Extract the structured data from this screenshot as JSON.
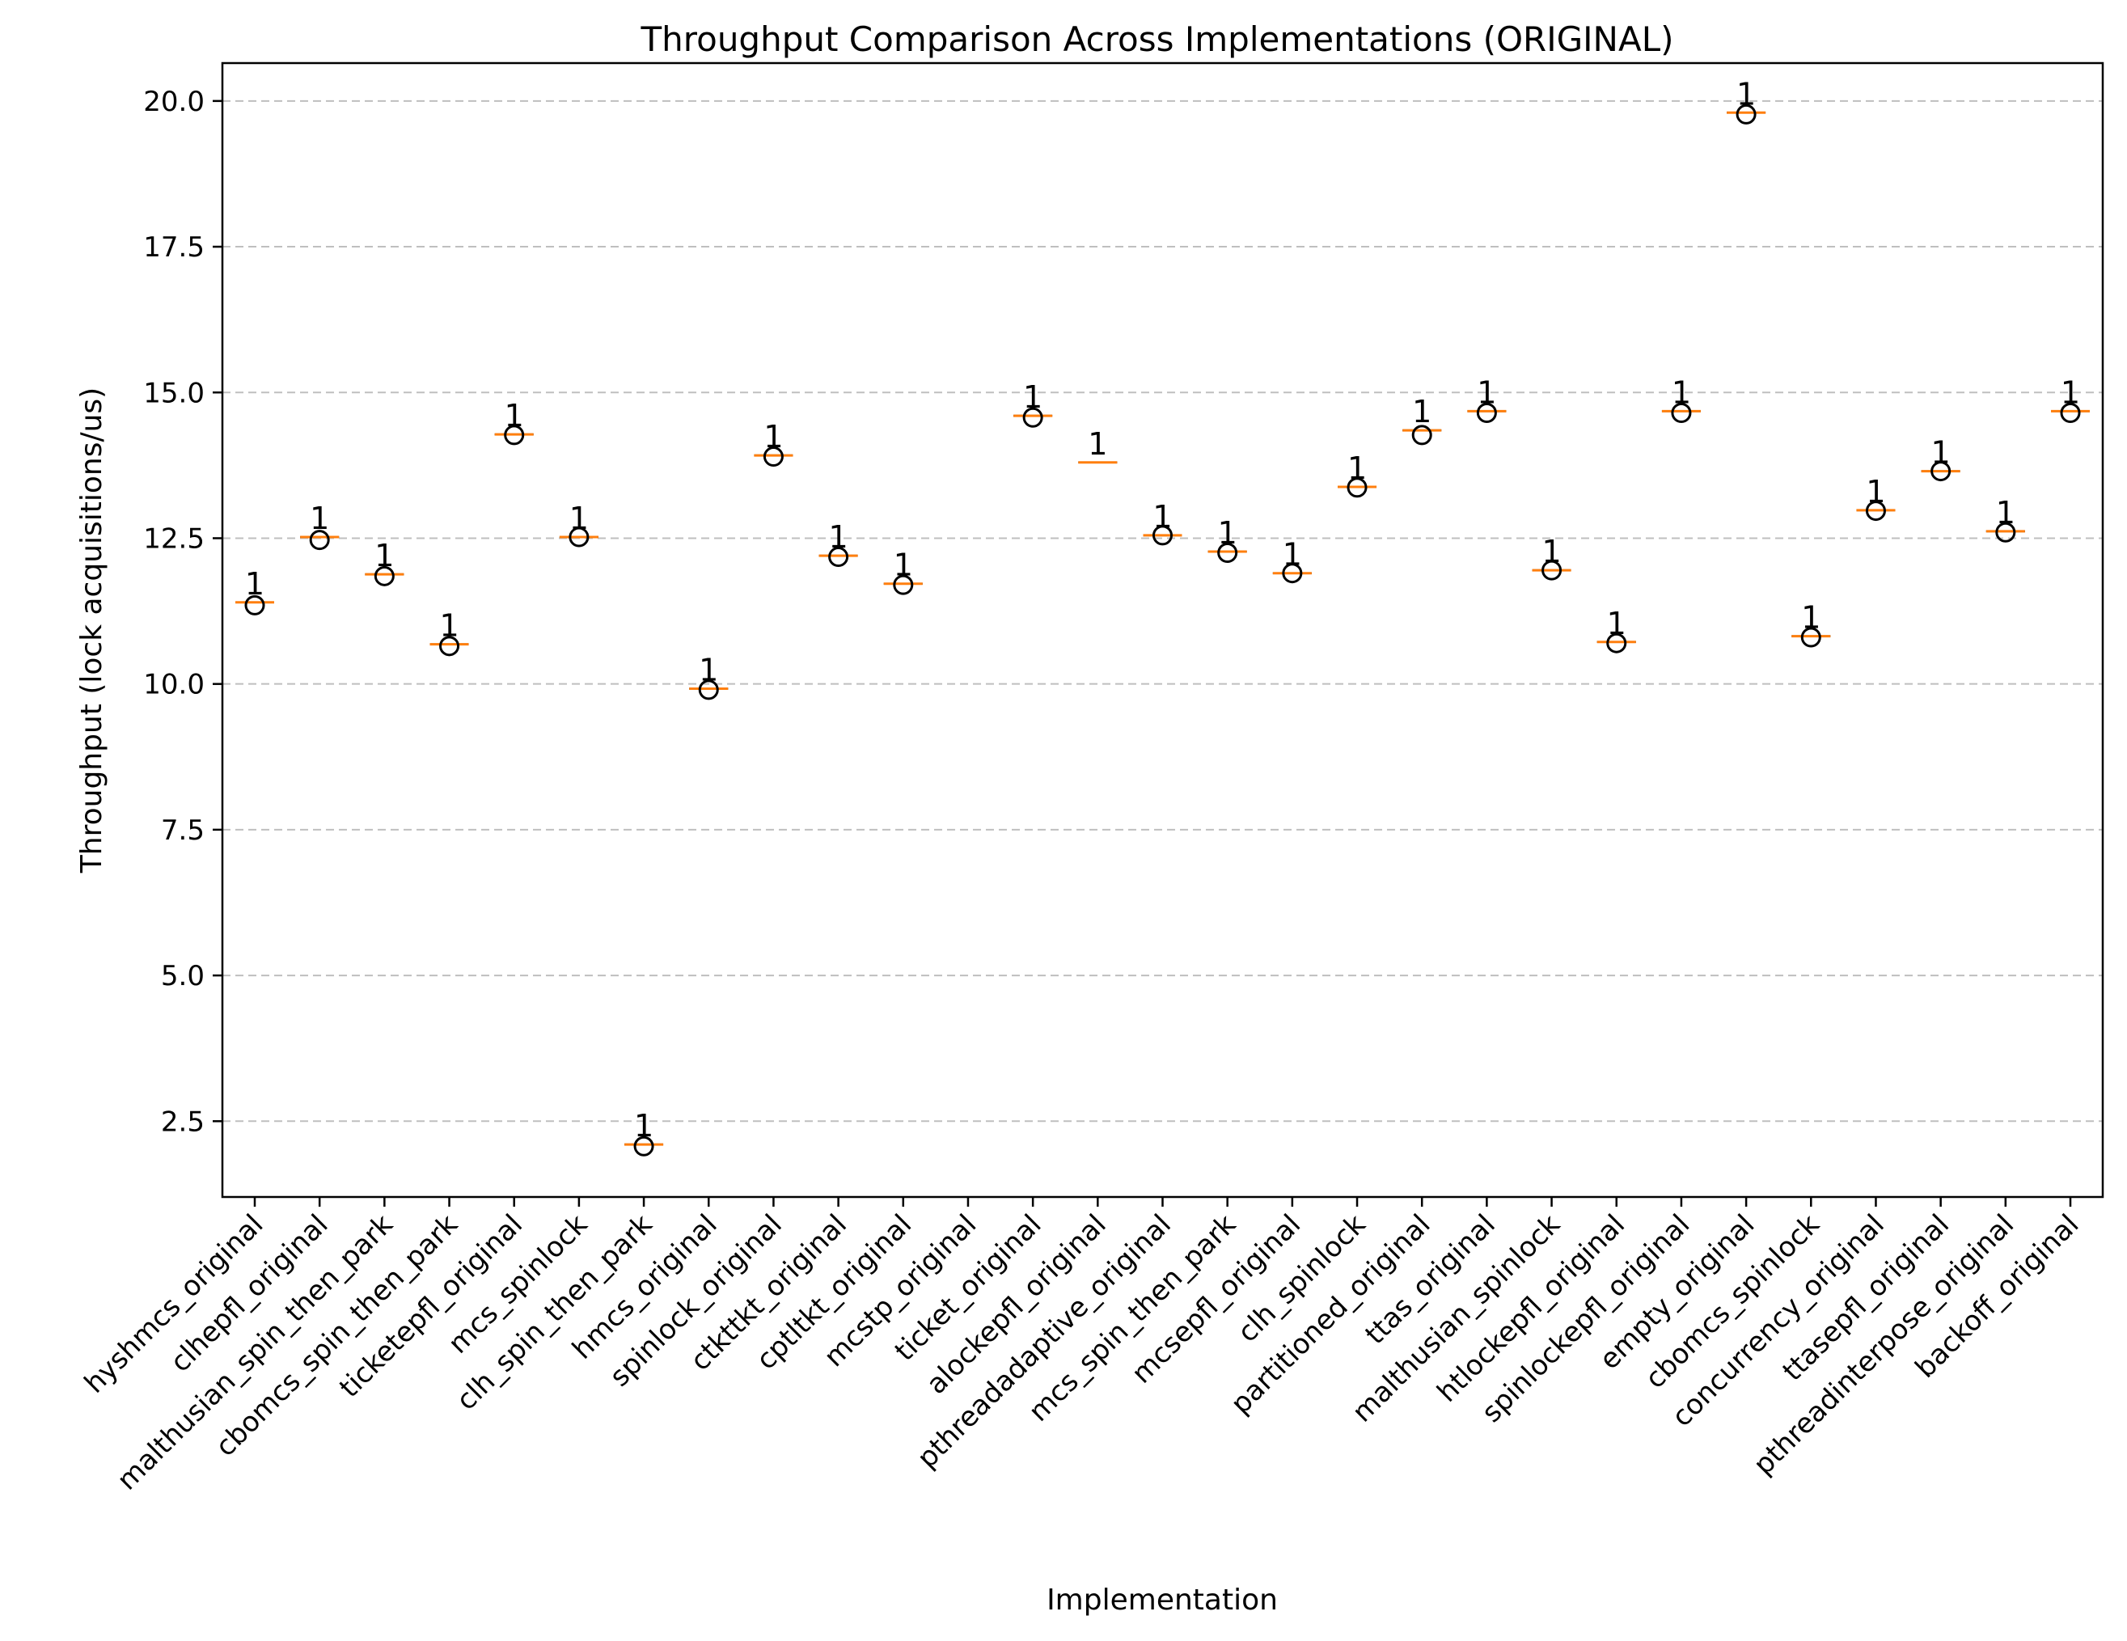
{
  "chart_data": {
    "type": "box",
    "title": "Throughput Comparison Across Implementations (ORIGINAL)",
    "xlabel": "Implementation",
    "ylabel": "Throughput (lock acquisitions/us)",
    "ylim": [
      1.2,
      20.65
    ],
    "yticks": [
      2.5,
      5.0,
      7.5,
      10.0,
      12.5,
      15.0,
      17.5,
      20.0
    ],
    "ytick_labels": [
      "2.5",
      "5.0",
      "7.5",
      "10.0",
      "12.5",
      "15.0",
      "17.5",
      "20.0"
    ],
    "grid": "y",
    "categories": [
      "hyshmcs_original",
      "clhepfl_original",
      "malthusian_spin_then_park",
      "cbomcs_spin_then_park",
      "ticketepfl_original",
      "mcs_spinlock",
      "clh_spin_then_park",
      "hmcs_original",
      "spinlock_original",
      "ctkttkt_original",
      "cptltkt_original",
      "mcstp_original",
      "ticket_original",
      "alockepfl_original",
      "pthreadadaptive_original",
      "mcs_spin_then_park",
      "mcsepfl_original",
      "clh_spinlock",
      "partitioned_original",
      "ttas_original",
      "malthusian_spinlock",
      "htlockepfl_original",
      "spinlockepfl_original",
      "empty_original",
      "cbomcs_spinlock",
      "concurrency_original",
      "ttasepfl_original",
      "pthreadinterpose_original",
      "backoff_original"
    ],
    "medians": [
      11.4,
      12.52,
      11.88,
      10.68,
      14.28,
      12.52,
      2.1,
      9.92,
      13.92,
      12.2,
      11.72,
      null,
      14.6,
      13.8,
      12.55,
      12.27,
      11.9,
      13.38,
      14.35,
      14.68,
      11.95,
      10.72,
      14.68,
      19.8,
      10.82,
      12.98,
      13.65,
      12.62,
      14.68
    ],
    "points": [
      11.35,
      12.47,
      11.85,
      10.65,
      14.27,
      12.52,
      2.07,
      9.9,
      13.9,
      12.18,
      11.7,
      null,
      14.57,
      null,
      12.55,
      12.25,
      11.9,
      13.37,
      14.27,
      14.65,
      11.95,
      10.7,
      14.65,
      19.77,
      10.8,
      12.97,
      13.65,
      12.6,
      14.65
    ],
    "counts": [
      "1",
      "1",
      "1",
      "1",
      "1",
      "1",
      "1",
      "1",
      "1",
      "1",
      "1",
      "",
      "1",
      "1",
      "1",
      "1",
      "1",
      "1",
      "1",
      "1",
      "1",
      "1",
      "1",
      "1",
      "1",
      "1",
      "1",
      "1",
      "1"
    ]
  }
}
